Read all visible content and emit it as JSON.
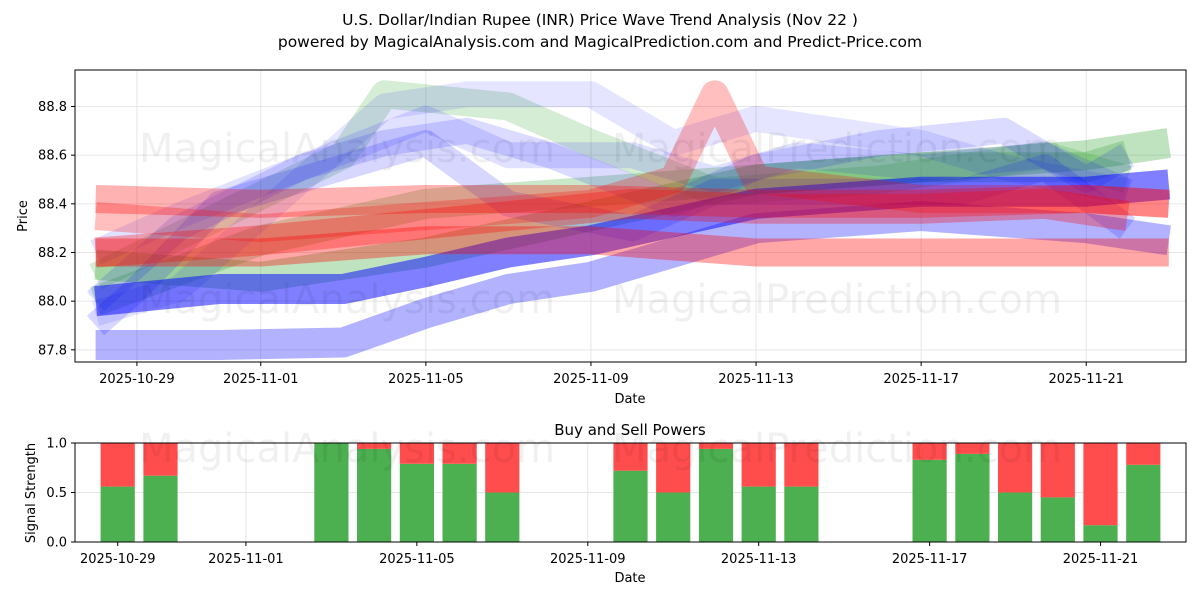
{
  "figure": {
    "title_line1": "U.S. Dollar/Indian Rupee (INR) Price Wave Trend Analysis (Nov 22 )",
    "title_line2": "powered by MagicalAnalysis.com and MagicalPrediction.com and Predict-Price.com",
    "watermarks": [
      "MagicalAnalysis.com",
      "MagicalPrediction.com"
    ]
  },
  "colors": {
    "green": "#2ca02c",
    "blue": "#0000ff",
    "red": "#ff0000",
    "buy_bar": "#4caf50",
    "sell_bar": "#ff4d4d",
    "grid": "#e6e6e6"
  },
  "chart_data": [
    {
      "type": "line",
      "name": "price-wave-chart",
      "xlabel": "Date",
      "ylabel": "Price",
      "xlim": [
        "2025-10-27T12:00",
        "2025-11-23T10:00"
      ],
      "ylim": [
        87.75,
        88.95
      ],
      "xticks": [
        "2025-10-29",
        "2025-11-01",
        "2025-11-05",
        "2025-11-09",
        "2025-11-13",
        "2025-11-17",
        "2025-11-21"
      ],
      "yticks": [
        87.8,
        88.0,
        88.2,
        88.4,
        88.6,
        88.8
      ],
      "grid": true,
      "series": [
        {
          "name": "green-band-1",
          "color": "green",
          "width": 28,
          "opacity": 0.2,
          "points": [
            [
              "2025-10-28",
              88.1
            ],
            [
              "2025-10-31",
              88.35
            ],
            [
              "2025-11-03",
              88.6
            ],
            [
              "2025-11-04",
              88.85
            ],
            [
              "2025-11-07",
              88.8
            ],
            [
              "2025-11-09",
              88.65
            ],
            [
              "2025-11-12",
              88.45
            ],
            [
              "2025-11-16",
              88.5
            ],
            [
              "2025-11-20",
              88.6
            ],
            [
              "2025-11-22",
              88.5
            ]
          ]
        },
        {
          "name": "green-band-2",
          "color": "green",
          "width": 30,
          "opacity": 0.25,
          "points": [
            [
              "2025-10-28",
              88.0
            ],
            [
              "2025-11-01",
              88.25
            ],
            [
              "2025-11-05",
              88.4
            ],
            [
              "2025-11-09",
              88.45
            ],
            [
              "2025-11-13",
              88.5
            ],
            [
              "2025-11-17",
              88.55
            ],
            [
              "2025-11-21",
              88.55
            ],
            [
              "2025-11-22",
              88.6
            ]
          ]
        },
        {
          "name": "green-band-3",
          "color": "green",
          "width": 30,
          "opacity": 0.3,
          "points": [
            [
              "2025-10-28",
              88.15
            ],
            [
              "2025-11-01",
              88.1
            ],
            [
              "2025-11-05",
              88.2
            ],
            [
              "2025-11-09",
              88.35
            ],
            [
              "2025-11-13",
              88.5
            ],
            [
              "2025-11-17",
              88.55
            ],
            [
              "2025-11-21",
              88.6
            ],
            [
              "2025-11-23",
              88.65
            ]
          ]
        },
        {
          "name": "blue-band-1",
          "color": "blue",
          "width": 26,
          "opacity": 0.1,
          "points": [
            [
              "2025-10-28",
              87.95
            ],
            [
              "2025-10-30",
              88.05
            ],
            [
              "2025-11-01",
              88.35
            ],
            [
              "2025-11-04",
              88.8
            ],
            [
              "2025-11-06",
              88.85
            ],
            [
              "2025-11-09",
              88.85
            ],
            [
              "2025-11-11",
              88.65
            ],
            [
              "2025-11-13",
              88.75
            ],
            [
              "2025-11-17",
              88.65
            ],
            [
              "2025-11-19",
              88.55
            ],
            [
              "2025-11-22",
              88.45
            ]
          ]
        },
        {
          "name": "blue-band-2",
          "color": "blue",
          "width": 26,
          "opacity": 0.12,
          "points": [
            [
              "2025-10-28",
              88.2
            ],
            [
              "2025-10-30",
              88.35
            ],
            [
              "2025-11-02",
              88.55
            ],
            [
              "2025-11-05",
              88.75
            ],
            [
              "2025-11-07",
              88.6
            ],
            [
              "2025-11-10",
              88.6
            ],
            [
              "2025-11-12",
              88.5
            ],
            [
              "2025-11-14",
              88.6
            ],
            [
              "2025-11-17",
              88.55
            ],
            [
              "2025-11-20",
              88.6
            ],
            [
              "2025-11-22",
              88.45
            ]
          ]
        },
        {
          "name": "blue-band-3",
          "color": "blue",
          "width": 26,
          "opacity": 0.14,
          "points": [
            [
              "2025-10-28",
              88.0
            ],
            [
              "2025-10-30",
              88.3
            ],
            [
              "2025-11-02",
              88.55
            ],
            [
              "2025-11-04",
              88.65
            ],
            [
              "2025-11-06",
              88.7
            ],
            [
              "2025-11-08",
              88.6
            ],
            [
              "2025-11-11",
              88.4
            ],
            [
              "2025-11-13",
              88.55
            ],
            [
              "2025-11-16",
              88.65
            ],
            [
              "2025-11-19",
              88.7
            ],
            [
              "2025-11-21",
              88.5
            ],
            [
              "2025-11-22",
              88.6
            ]
          ]
        },
        {
          "name": "blue-band-4",
          "color": "blue",
          "width": 26,
          "opacity": 0.16,
          "points": [
            [
              "2025-10-28",
              87.9
            ],
            [
              "2025-10-29",
              88.05
            ],
            [
              "2025-10-31",
              88.4
            ],
            [
              "2025-11-03",
              88.55
            ],
            [
              "2025-11-05",
              88.65
            ],
            [
              "2025-11-07",
              88.4
            ],
            [
              "2025-11-10",
              88.3
            ],
            [
              "2025-11-12",
              88.45
            ],
            [
              "2025-11-15",
              88.45
            ],
            [
              "2025-11-18",
              88.45
            ],
            [
              "2025-11-20",
              88.55
            ],
            [
              "2025-11-22",
              88.3
            ]
          ]
        },
        {
          "name": "blue-band-5",
          "color": "blue",
          "width": 30,
          "opacity": 0.3,
          "points": [
            [
              "2025-10-28",
              87.82
            ],
            [
              "2025-10-31",
              87.82
            ],
            [
              "2025-11-03",
              87.83
            ],
            [
              "2025-11-05",
              87.95
            ],
            [
              "2025-11-07",
              88.05
            ],
            [
              "2025-11-09",
              88.1
            ],
            [
              "2025-11-11",
              88.2
            ],
            [
              "2025-11-13",
              88.3
            ],
            [
              "2025-11-17",
              88.35
            ],
            [
              "2025-11-21",
              88.3
            ],
            [
              "2025-11-23",
              88.25
            ]
          ]
        },
        {
          "name": "blue-band-6",
          "color": "blue",
          "width": 30,
          "opacity": 0.5,
          "points": [
            [
              "2025-10-28",
              88.0
            ],
            [
              "2025-10-31",
              88.05
            ],
            [
              "2025-11-03",
              88.05
            ],
            [
              "2025-11-05",
              88.12
            ],
            [
              "2025-11-07",
              88.2
            ],
            [
              "2025-11-09",
              88.25
            ],
            [
              "2025-11-13",
              88.4
            ],
            [
              "2025-11-17",
              88.45
            ],
            [
              "2025-11-21",
              88.45
            ],
            [
              "2025-11-23",
              88.48
            ]
          ]
        },
        {
          "name": "red-band-1",
          "color": "red",
          "width": 28,
          "opacity": 0.25,
          "points": [
            [
              "2025-10-28",
              88.35
            ],
            [
              "2025-11-01",
              88.3
            ],
            [
              "2025-11-05",
              88.35
            ],
            [
              "2025-11-09",
              88.4
            ],
            [
              "2025-11-11",
              88.5
            ],
            [
              "2025-11-12",
              88.85
            ],
            [
              "2025-11-13",
              88.5
            ],
            [
              "2025-11-17",
              88.42
            ],
            [
              "2025-11-21",
              88.42
            ],
            [
              "2025-11-23",
              88.4
            ]
          ]
        },
        {
          "name": "red-band-2",
          "color": "red",
          "width": 28,
          "opacity": 0.35,
          "points": [
            [
              "2025-10-28",
              88.2
            ],
            [
              "2025-11-01",
              88.2
            ],
            [
              "2025-11-05",
              88.25
            ],
            [
              "2025-11-09",
              88.25
            ],
            [
              "2025-11-13",
              88.2
            ],
            [
              "2025-11-17",
              88.2
            ],
            [
              "2025-11-21",
              88.2
            ],
            [
              "2025-11-23",
              88.2
            ]
          ]
        },
        {
          "name": "red-band-3",
          "color": "red",
          "width": 30,
          "opacity": 0.3,
          "points": [
            [
              "2025-10-28",
              88.2
            ],
            [
              "2025-11-01",
              88.25
            ],
            [
              "2025-11-04",
              88.3
            ],
            [
              "2025-11-07",
              88.35
            ],
            [
              "2025-11-10",
              88.4
            ],
            [
              "2025-11-13",
              88.38
            ],
            [
              "2025-11-17",
              88.38
            ],
            [
              "2025-11-20",
              88.4
            ],
            [
              "2025-11-22",
              88.35
            ]
          ]
        },
        {
          "name": "red-band-4",
          "color": "red",
          "width": 28,
          "opacity": 0.3,
          "points": [
            [
              "2025-10-28",
              88.42
            ],
            [
              "2025-11-01",
              88.4
            ],
            [
              "2025-11-05",
              88.42
            ],
            [
              "2025-11-09",
              88.42
            ],
            [
              "2025-11-13",
              88.4
            ],
            [
              "2025-11-17",
              88.4
            ],
            [
              "2025-11-21",
              88.42
            ],
            [
              "2025-11-23",
              88.4
            ]
          ]
        }
      ]
    },
    {
      "type": "bar",
      "name": "buy-sell-chart",
      "title": "Buy and Sell Powers",
      "xlabel": "Date",
      "ylabel": "Signal Strength",
      "xlim": [
        "2025-10-28",
        "2025-11-23"
      ],
      "ylim": [
        0,
        1.0
      ],
      "xticks": [
        "2025-10-29",
        "2025-11-01",
        "2025-11-05",
        "2025-11-09",
        "2025-11-13",
        "2025-11-17",
        "2025-11-21"
      ],
      "yticks": [
        "0.0",
        "0.5",
        "1.0"
      ],
      "grid": true,
      "categories": [
        "2025-10-29",
        "2025-10-30",
        "2025-11-03",
        "2025-11-04",
        "2025-11-05",
        "2025-11-06",
        "2025-11-07",
        "2025-11-10",
        "2025-11-11",
        "2025-11-12",
        "2025-11-13",
        "2025-11-14",
        "2025-11-17",
        "2025-11-18",
        "2025-11-19",
        "2025-11-20",
        "2025-11-21",
        "2025-11-22"
      ],
      "series": [
        {
          "name": "Buy",
          "color": "buy_bar",
          "values": [
            0.56,
            0.67,
            1.0,
            0.94,
            0.79,
            0.79,
            0.5,
            0.72,
            0.5,
            0.94,
            0.56,
            0.56,
            0.83,
            0.89,
            0.5,
            0.45,
            0.17,
            0.78
          ]
        },
        {
          "name": "Sell",
          "color": "sell_bar",
          "values": [
            0.44,
            0.33,
            0.0,
            0.06,
            0.21,
            0.21,
            0.5,
            0.28,
            0.5,
            0.06,
            0.44,
            0.44,
            0.17,
            0.11,
            0.5,
            0.55,
            0.83,
            0.22
          ]
        }
      ]
    }
  ]
}
